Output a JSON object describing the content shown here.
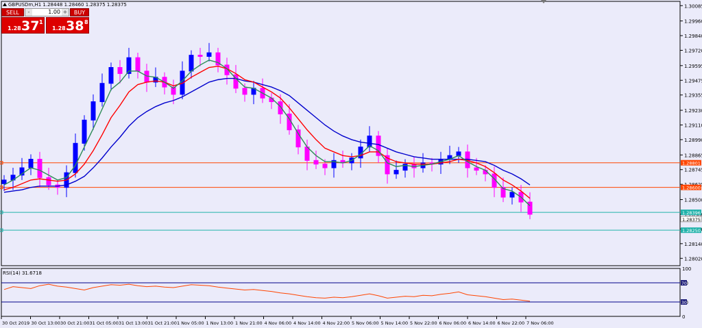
{
  "chart_data": [
    {
      "type": "candlestick",
      "title": "GBPUSDm,H1  1.28448 1.28460 1.28375 1.28375",
      "ylim": [
        1.2796,
        1.3012
      ],
      "y_ticks": [
        "1.30085",
        "1.29960",
        "1.29840",
        "1.29720",
        "1.29595",
        "1.29475",
        "1.29355",
        "1.29230",
        "1.29110",
        "1.28990",
        "1.28865",
        "1.28745",
        "1.28625",
        "1.28500",
        "1.28380",
        "1.28260",
        "1.28140",
        "1.28020"
      ],
      "x_ticks": [
        "30 Oct 2019",
        "30 Oct 13:00",
        "30 Oct 21:00",
        "31 Oct 05:00",
        "31 Oct 13:00",
        "31 Oct 21:00",
        "1 Nov 05:00",
        "1 Nov 13:00",
        "1 Nov 21:00",
        "4 Nov 06:00",
        "4 Nov 14:00",
        "4 Nov 22:00",
        "5 Nov 06:00",
        "5 Nov 14:00",
        "5 Nov 22:00",
        "6 Nov 06:00",
        "6 Nov 14:00",
        "6 Nov 22:00",
        "7 Nov 06:00"
      ],
      "close": [
        1.2866,
        1.287,
        1.2876,
        1.2883,
        1.2868,
        1.2862,
        1.286,
        1.2872,
        1.2896,
        1.2915,
        1.293,
        1.2945,
        1.2958,
        1.2953,
        1.2966,
        1.2955,
        1.2946,
        1.295,
        1.2942,
        1.2936,
        1.2955,
        1.2968,
        1.2967,
        1.297,
        1.296,
        1.2952,
        1.2941,
        1.2936,
        1.2941,
        1.2933,
        1.293,
        1.292,
        1.2907,
        1.2893,
        1.2882,
        1.2879,
        1.2876,
        1.2882,
        1.288,
        1.2884,
        1.2893,
        1.2902,
        1.2886,
        1.2871,
        1.2874,
        1.2879,
        1.2876,
        1.288,
        1.2879,
        1.2883,
        1.2886,
        1.2889,
        1.2876,
        1.2874,
        1.2871,
        1.286,
        1.2852,
        1.2856,
        1.2848,
        1.2838
      ],
      "ema_fast": [
        1.2862,
        1.2866,
        1.2871,
        1.2876,
        1.2874,
        1.287,
        1.2866,
        1.2868,
        1.2878,
        1.2893,
        1.2908,
        1.2924,
        1.294,
        1.2946,
        1.2955,
        1.2955,
        1.2951,
        1.295,
        1.2946,
        1.2941,
        1.2947,
        1.2955,
        1.296,
        1.2964,
        1.2962,
        1.2957,
        1.2949,
        1.2942,
        1.2941,
        1.2937,
        1.2933,
        1.2926,
        1.2916,
        1.2904,
        1.2893,
        1.2886,
        1.2881,
        1.2881,
        1.288,
        1.2882,
        1.2887,
        1.2894,
        1.289,
        1.288,
        1.2877,
        1.2878,
        1.2877,
        1.2878,
        1.2879,
        1.2881,
        1.2883,
        1.2886,
        1.2881,
        1.2877,
        1.2874,
        1.2867,
        1.2859,
        1.2857,
        1.2852,
        1.2845
      ],
      "ema_mid": [
        1.2858,
        1.286,
        1.2863,
        1.2866,
        1.2867,
        1.2866,
        1.2865,
        1.2866,
        1.2871,
        1.2879,
        1.289,
        1.2903,
        1.2917,
        1.2927,
        1.2938,
        1.2944,
        1.2946,
        1.2947,
        1.2946,
        1.2943,
        1.2945,
        1.295,
        1.2954,
        1.2958,
        1.2959,
        1.2957,
        1.2953,
        1.2948,
        1.2946,
        1.2942,
        1.2938,
        1.2933,
        1.2925,
        1.2916,
        1.2907,
        1.2899,
        1.2892,
        1.2889,
        1.2886,
        1.2885,
        1.2886,
        1.2889,
        1.2889,
        1.2884,
        1.2881,
        1.288,
        1.2879,
        1.2879,
        1.2879,
        1.288,
        1.2881,
        1.2883,
        1.2882,
        1.288,
        1.2877,
        1.2872,
        1.2866,
        1.2862,
        1.2857,
        1.2851
      ],
      "ema_slow": [
        1.2856,
        1.2857,
        1.2858,
        1.286,
        1.2861,
        1.2861,
        1.2861,
        1.2862,
        1.2865,
        1.2869,
        1.2876,
        1.2884,
        1.2893,
        1.2901,
        1.291,
        1.2917,
        1.2922,
        1.2926,
        1.2929,
        1.2931,
        1.2934,
        1.2938,
        1.2942,
        1.2946,
        1.2948,
        1.2949,
        1.2949,
        1.2947,
        1.2946,
        1.2944,
        1.2942,
        1.2939,
        1.2935,
        1.2929,
        1.2923,
        1.2917,
        1.2911,
        1.2906,
        1.2902,
        1.2899,
        1.2897,
        1.2896,
        1.2895,
        1.2892,
        1.2889,
        1.2887,
        1.2885,
        1.2884,
        1.2883,
        1.2883,
        1.2883,
        1.2883,
        1.2883,
        1.2882,
        1.2881,
        1.2878,
        1.2874,
        1.2871,
        1.2867,
        1.2862
      ],
      "horizontal_lines": [
        {
          "value": "1.28801",
          "color": "#ff4500"
        },
        {
          "value": "1.28600",
          "color": "#ff4500"
        },
        {
          "value": "1.28396",
          "color": "#20b2aa"
        },
        {
          "value": "1.28250",
          "color": "#20b2aa"
        }
      ],
      "current_price_label": "1.28375",
      "colors": {
        "bull": "#0000ff",
        "bear": "#ff00ff",
        "ema_fast": "#2e8b57",
        "ema_mid": "#ff0000",
        "ema_slow": "#0000cd"
      }
    },
    {
      "type": "line",
      "title": "RSI(14) 31.6718",
      "ylim": [
        0,
        100
      ],
      "y_ticks": [
        "100",
        "70",
        "30",
        "0"
      ],
      "levels": [
        70,
        30
      ],
      "values": [
        56,
        62,
        60,
        58,
        64,
        67,
        63,
        61,
        58,
        55,
        60,
        63,
        66,
        65,
        67,
        64,
        62,
        63,
        61,
        60,
        63,
        66,
        65,
        64,
        61,
        59,
        57,
        55,
        56,
        54,
        52,
        49,
        47,
        44,
        41,
        39,
        38,
        40,
        39,
        41,
        44,
        47,
        43,
        38,
        40,
        42,
        41,
        44,
        43,
        46,
        48,
        51,
        45,
        43,
        41,
        38,
        35,
        36,
        34,
        31.6718
      ],
      "color": "#ff4500"
    }
  ],
  "trade_panel": {
    "sell_label": "SELL",
    "buy_label": "BUY",
    "lot": "1.00",
    "minus": "-",
    "plus": "+",
    "sell_price_small": "1.28",
    "sell_price_big": "37",
    "sell_price_sup": "1",
    "buy_price_small": "1.28",
    "buy_price_big": "38",
    "buy_price_sup": "8"
  }
}
